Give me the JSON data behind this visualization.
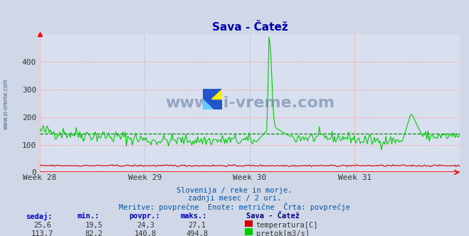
{
  "title": "Sava - Čatež",
  "title_color": "#0000aa",
  "background_color": "#d0d8e8",
  "plot_bg_color": "#d8e0f0",
  "grid_color": "#ffaaaa",
  "axis_color": "#ff0000",
  "xlim": [
    0,
    360
  ],
  "ylim": [
    0,
    500
  ],
  "yticks": [
    0,
    100,
    200,
    300,
    400
  ],
  "xtick_labels": [
    "Week 28",
    "Week 29",
    "Week 30",
    "Week 31"
  ],
  "xtick_positions": [
    0,
    90,
    180,
    270
  ],
  "flow_color": "#00cc00",
  "temp_color": "#cc0000",
  "avg_flow_color": "#008800",
  "avg_flow_value": 140.8,
  "watermark": "www.si-vreme.com",
  "watermark_color": "#1a3a6a",
  "watermark_alpha": 0.35,
  "subtitle1": "Slovenija / reke in morje.",
  "subtitle2": "zadnji mesec / 2 uri.",
  "subtitle3": "Meritve: povprečne  Enote: metrične  Črta: povprečje",
  "subtitle_color": "#0055aa",
  "legend_title": "Sava - Čatež",
  "legend_title_color": "#000088",
  "table_headers": [
    "sedaj:",
    "min.:",
    "povpr.:",
    "maks.:"
  ],
  "table_header_color": "#0000cc",
  "temp_row": [
    "25,6",
    "19,5",
    "24,3",
    "27,1"
  ],
  "flow_row": [
    "113,7",
    "82,2",
    "140,8",
    "494,8"
  ],
  "temp_label": "temperatura[C]",
  "flow_label": "pretok[m3/s]",
  "table_color": "#333333",
  "left_label_color": "#336699"
}
